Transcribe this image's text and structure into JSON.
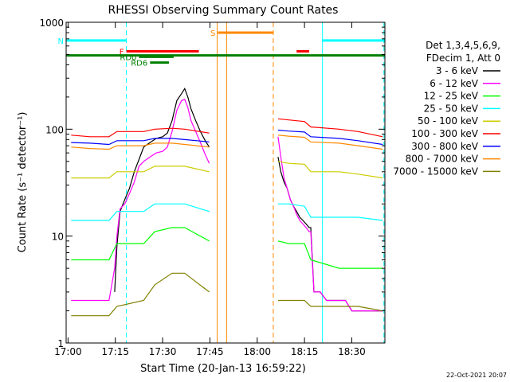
{
  "chart_data": {
    "type": "line",
    "title": "RHESSI Observing Summary Count Rates",
    "ylabel": "Count Rate (s⁻¹ detector⁻¹)",
    "xlabel": "Start Time (20-Jan-13 16:59:22)",
    "x_unit": "minutes after 17:00 UT",
    "xlim": [
      -0.6,
      100.5
    ],
    "ylim": [
      1,
      1000
    ],
    "yscale": "log",
    "x_ticks": [
      {
        "label": "17:00",
        "x": 0
      },
      {
        "label": "17:15",
        "x": 15
      },
      {
        "label": "17:30",
        "x": 30
      },
      {
        "label": "17:45",
        "x": 45
      },
      {
        "label": "18:00",
        "x": 60
      },
      {
        "label": "18:15",
        "x": 75
      },
      {
        "label": "18:30",
        "x": 90
      }
    ],
    "y_ticks": [
      {
        "label": "1",
        "y": 1
      },
      {
        "label": "10",
        "y": 10
      },
      {
        "label": "100",
        "y": 100
      },
      {
        "label": "1000",
        "y": 1000
      }
    ],
    "legend_header": [
      "Det 1,3,4,5,6,9,",
      "FDecim 1, Att 0"
    ],
    "series": [
      {
        "name": "3 - 6 keV",
        "color": "#000000",
        "points": [
          [
            14.8,
            3
          ],
          [
            15.5,
            8
          ],
          [
            16.5,
            17
          ],
          [
            18,
            22
          ],
          [
            19.5,
            28
          ],
          [
            21,
            40
          ],
          [
            22.5,
            52
          ],
          [
            24,
            68
          ],
          [
            26,
            75
          ],
          [
            28,
            82
          ],
          [
            30,
            85
          ],
          [
            31.5,
            92
          ],
          [
            33,
            120
          ],
          [
            34.5,
            185
          ],
          [
            36,
            215
          ],
          [
            37,
            240
          ],
          [
            38,
            200
          ],
          [
            39,
            155
          ],
          [
            40.5,
            120
          ],
          [
            42,
            95
          ],
          [
            43.5,
            78
          ],
          [
            44.8,
            68
          ],
          [
            null,
            null
          ],
          [
            66.6,
            55
          ],
          [
            67.5,
            40
          ],
          [
            68.5,
            32
          ],
          [
            69.5,
            28
          ],
          [
            70.5,
            22
          ],
          [
            71.5,
            19
          ],
          [
            72.5,
            17
          ],
          [
            73.5,
            15
          ],
          [
            74.5,
            14
          ],
          [
            75.5,
            13
          ],
          [
            76.5,
            12
          ],
          [
            77,
            12
          ],
          [
            78,
            3
          ],
          [
            80,
            3
          ],
          [
            82,
            2.5
          ],
          [
            84,
            2.5
          ],
          [
            86,
            2.5
          ],
          [
            88,
            2.5
          ],
          [
            90,
            2
          ],
          [
            92,
            2
          ],
          [
            94,
            2
          ],
          [
            96,
            2
          ],
          [
            98,
            2
          ],
          [
            99.8,
            2
          ]
        ]
      },
      {
        "name": "6 - 12 keV",
        "color": "#ff00ff",
        "points": [
          [
            1,
            2.5
          ],
          [
            3,
            2.5
          ],
          [
            5,
            2.5
          ],
          [
            7,
            2.5
          ],
          [
            9,
            2.5
          ],
          [
            11,
            2.5
          ],
          [
            13,
            2.5
          ],
          [
            14.8,
            5
          ],
          [
            15.5,
            10
          ],
          [
            16.5,
            18
          ],
          [
            18,
            20
          ],
          [
            19.5,
            25
          ],
          [
            21,
            32
          ],
          [
            22.5,
            45
          ],
          [
            24,
            50
          ],
          [
            26,
            55
          ],
          [
            28,
            60
          ],
          [
            30,
            62
          ],
          [
            31.5,
            68
          ],
          [
            33,
            95
          ],
          [
            34.5,
            150
          ],
          [
            36,
            185
          ],
          [
            37,
            190
          ],
          [
            38,
            160
          ],
          [
            39,
            120
          ],
          [
            40.5,
            95
          ],
          [
            42,
            75
          ],
          [
            43.5,
            58
          ],
          [
            44.8,
            48
          ],
          [
            null,
            null
          ],
          [
            66.6,
            85
          ],
          [
            67.5,
            55
          ],
          [
            68.5,
            35
          ],
          [
            69.5,
            28
          ],
          [
            70.5,
            22
          ],
          [
            71.5,
            19
          ],
          [
            72.5,
            16
          ],
          [
            73.5,
            14
          ],
          [
            74.5,
            13
          ],
          [
            75.5,
            12
          ],
          [
            76.5,
            11
          ],
          [
            77,
            11
          ],
          [
            78,
            3
          ],
          [
            80,
            3
          ],
          [
            82,
            2.5
          ],
          [
            84,
            2.5
          ],
          [
            86,
            2.5
          ],
          [
            88,
            2.5
          ],
          [
            90,
            2
          ],
          [
            92,
            2
          ],
          [
            94,
            2
          ],
          [
            96,
            2
          ],
          [
            98,
            2
          ],
          [
            99.8,
            2
          ]
        ]
      },
      {
        "name": "12 - 25 keV",
        "color": "#00ff00",
        "points": [
          [
            1,
            6
          ],
          [
            7,
            6
          ],
          [
            13,
            6
          ],
          [
            15.5,
            8.5
          ],
          [
            24,
            8.5
          ],
          [
            27.5,
            11
          ],
          [
            33,
            12
          ],
          [
            37,
            12
          ],
          [
            44.8,
            9
          ],
          [
            null,
            null
          ],
          [
            66.6,
            9
          ],
          [
            70,
            8.5
          ],
          [
            75,
            8.5
          ],
          [
            77,
            6
          ],
          [
            86,
            5
          ],
          [
            92,
            5
          ],
          [
            99.8,
            5
          ]
        ]
      },
      {
        "name": "25 - 50 keV",
        "color": "#00ffff",
        "points": [
          [
            1,
            14
          ],
          [
            7,
            14
          ],
          [
            13,
            14
          ],
          [
            15.5,
            17
          ],
          [
            24,
            17
          ],
          [
            27.5,
            20
          ],
          [
            33,
            20
          ],
          [
            37,
            20
          ],
          [
            44.8,
            17
          ],
          [
            null,
            null
          ],
          [
            66.6,
            20
          ],
          [
            70,
            20
          ],
          [
            75,
            19
          ],
          [
            77,
            15
          ],
          [
            86,
            15
          ],
          [
            92,
            15
          ],
          [
            99.8,
            14
          ]
        ]
      },
      {
        "name": "50 - 100 keV",
        "color": "#cccc00",
        "points": [
          [
            1,
            35
          ],
          [
            7,
            35
          ],
          [
            13,
            35
          ],
          [
            15.5,
            40
          ],
          [
            24,
            40
          ],
          [
            27.5,
            45
          ],
          [
            33,
            45
          ],
          [
            37,
            45
          ],
          [
            44.8,
            40
          ],
          [
            null,
            null
          ],
          [
            66.6,
            50
          ],
          [
            70,
            48
          ],
          [
            75,
            47
          ],
          [
            77,
            40
          ],
          [
            86,
            40
          ],
          [
            92,
            38
          ],
          [
            99.8,
            35
          ]
        ]
      },
      {
        "name": "100 - 300 keV",
        "color": "#ff0000",
        "points": [
          [
            1,
            88
          ],
          [
            7,
            85
          ],
          [
            13,
            85
          ],
          [
            15.5,
            95
          ],
          [
            24,
            95
          ],
          [
            27.5,
            100
          ],
          [
            33,
            102
          ],
          [
            37,
            100
          ],
          [
            44.8,
            92
          ],
          [
            null,
            null
          ],
          [
            66.6,
            125
          ],
          [
            70,
            122
          ],
          [
            75,
            118
          ],
          [
            77,
            105
          ],
          [
            86,
            100
          ],
          [
            92,
            95
          ],
          [
            99.8,
            85
          ]
        ]
      },
      {
        "name": "300 - 800 keV",
        "color": "#0000ff",
        "points": [
          [
            1,
            75
          ],
          [
            7,
            74
          ],
          [
            13,
            72
          ],
          [
            15.5,
            78
          ],
          [
            24,
            78
          ],
          [
            27.5,
            82
          ],
          [
            33,
            82
          ],
          [
            37,
            80
          ],
          [
            44.8,
            76
          ],
          [
            null,
            null
          ],
          [
            66.6,
            98
          ],
          [
            70,
            96
          ],
          [
            75,
            94
          ],
          [
            77,
            85
          ],
          [
            86,
            82
          ],
          [
            92,
            78
          ],
          [
            99.8,
            72
          ]
        ]
      },
      {
        "name": "800 - 7000 keV",
        "color": "#ff8800",
        "points": [
          [
            1,
            68
          ],
          [
            7,
            66
          ],
          [
            13,
            65
          ],
          [
            15.5,
            70
          ],
          [
            24,
            70
          ],
          [
            27.5,
            74
          ],
          [
            33,
            74
          ],
          [
            37,
            72
          ],
          [
            44.8,
            68
          ],
          [
            null,
            null
          ],
          [
            66.6,
            88
          ],
          [
            70,
            86
          ],
          [
            75,
            84
          ],
          [
            77,
            76
          ],
          [
            86,
            74
          ],
          [
            92,
            70
          ],
          [
            99.8,
            65
          ]
        ]
      },
      {
        "name": "7000 - 15000 keV",
        "color": "#808000",
        "points": [
          [
            1,
            1.8
          ],
          [
            7,
            1.8
          ],
          [
            13,
            1.8
          ],
          [
            15.5,
            2.2
          ],
          [
            24,
            2.5
          ],
          [
            27.5,
            3.5
          ],
          [
            33,
            4.5
          ],
          [
            37,
            4.5
          ],
          [
            44.8,
            3
          ],
          [
            null,
            null
          ],
          [
            66.6,
            2.5
          ],
          [
            70,
            2.5
          ],
          [
            75,
            2.5
          ],
          [
            77,
            2.2
          ],
          [
            86,
            2.2
          ],
          [
            92,
            2.2
          ],
          [
            99.8,
            2
          ]
        ]
      }
    ],
    "flag_bars": [
      {
        "label": "N",
        "color": "#00ffff",
        "ranges": [
          [
            -0.6,
            18.5
          ],
          [
            80.5,
            100.5
          ]
        ],
        "y": 675
      },
      {
        "label": "F",
        "color": "#ff0000",
        "ranges": [
          [
            18.5,
            41.5
          ],
          [
            72.5,
            76.5
          ]
        ],
        "y": 535
      },
      {
        "label": "S",
        "color": "#ff8800",
        "ranges": [
          [
            47.5,
            65
          ]
        ],
        "y": 800
      },
      {
        "label": "RD0",
        "color": "#008000",
        "ranges": [
          [
            22.5,
            33.5
          ]
        ],
        "y": 475
      },
      {
        "label": "RD6",
        "color": "#008000",
        "ranges": [
          [
            26,
            32
          ]
        ],
        "y": 420
      },
      {
        "label": "",
        "color": "#008000",
        "ranges": [
          [
            -0.6,
            100.5
          ]
        ],
        "y": 490
      }
    ],
    "vertical_markers": [
      {
        "x": -0.6,
        "color": "#00ffff",
        "style": "dashed"
      },
      {
        "x": 18.5,
        "color": "#00ffff",
        "style": "dashed"
      },
      {
        "x": 47.3,
        "color": "#ff8800",
        "style": "solid"
      },
      {
        "x": 50.3,
        "color": "#ff8800",
        "style": "solid"
      },
      {
        "x": 65.1,
        "color": "#ff8800",
        "style": "dashed"
      },
      {
        "x": 80.7,
        "color": "#00ffff",
        "style": "solid"
      },
      {
        "x": 100.2,
        "color": "#00ffff",
        "style": "dashed"
      }
    ],
    "timestamp": "22-Oct-2021 20:07"
  }
}
